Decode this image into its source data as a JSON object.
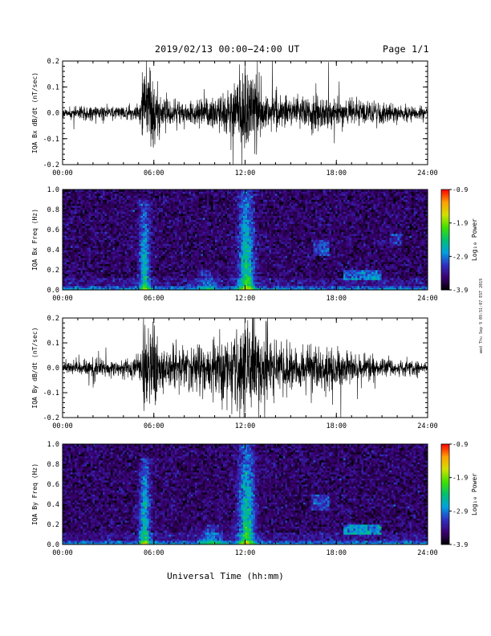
{
  "header": {
    "title": "2019/02/13  00:00−24:00 UT",
    "page": "Page 1/1"
  },
  "footer": {
    "xlabel": "Universal Time (hh:mm)"
  },
  "side_stamp": "wed Thu Sep 9 09:51:07 EST 2019",
  "colorbar": {
    "label": "Log₁₀ Power",
    "ticks": [
      "-0.9",
      "-1.9",
      "-2.9",
      "-3.9"
    ],
    "range": [
      -3.9,
      -0.9
    ],
    "colors": [
      "#000000",
      "#3a0070",
      "#3030c0",
      "#00a0e0",
      "#00c070",
      "#40e000",
      "#d0e000",
      "#ffa000",
      "#ff0000"
    ]
  },
  "chart_data": [
    {
      "type": "line",
      "id": "bx-dbdt",
      "ylabel": "IQA Bx dB/dt (nT/sec)",
      "ylim": [
        -0.2,
        0.2
      ],
      "yticks": [
        "-0.2",
        "-0.1",
        "0.0",
        "0.1",
        "0.2"
      ],
      "xlim": [
        0,
        24
      ],
      "xticks": [
        "00:00",
        "06:00",
        "12:00",
        "18:00",
        "24:00"
      ],
      "line_color": "#000000",
      "envelope": {
        "hours": [
          0,
          1,
          2,
          3,
          4,
          5,
          5.5,
          6,
          6.5,
          7,
          8,
          9,
          10,
          11,
          11.5,
          12,
          12.5,
          13,
          14,
          15,
          16,
          17,
          18,
          19,
          20,
          21,
          22,
          23,
          24
        ],
        "amplitude": [
          0.02,
          0.025,
          0.03,
          0.03,
          0.025,
          0.03,
          0.2,
          0.2,
          0.08,
          0.06,
          0.05,
          0.06,
          0.07,
          0.09,
          0.15,
          0.2,
          0.2,
          0.1,
          0.07,
          0.06,
          0.06,
          0.07,
          0.06,
          0.05,
          0.05,
          0.04,
          0.04,
          0.03,
          0.025
        ]
      }
    },
    {
      "type": "heatmap",
      "id": "bx-spec",
      "ylabel": "IQA Bx Freq (Hz)",
      "ylim": [
        0.0,
        1.0
      ],
      "yticks": [
        "0.0",
        "0.2",
        "0.4",
        "0.6",
        "0.8",
        "1.0"
      ],
      "xlim": [
        0,
        24
      ],
      "xticks": [
        "00:00",
        "06:00",
        "12:00",
        "18:00",
        "24:00"
      ],
      "zlabel": "Log₁₀ Power",
      "zlim": [
        -3.9,
        -0.9
      ],
      "features": [
        {
          "kind": "burst",
          "hour": 5.4,
          "width": 0.35,
          "fmax": 0.9,
          "level": -2.3
        },
        {
          "kind": "burst",
          "hour": 9.5,
          "width": 0.6,
          "fmax": 0.2,
          "level": -2.9
        },
        {
          "kind": "burst",
          "hour": 12.1,
          "width": 0.5,
          "fmax": 1.0,
          "level": -2.0
        },
        {
          "kind": "band",
          "hour_start": 16.5,
          "hour_end": 17.6,
          "fmin": 0.35,
          "fmax": 0.5,
          "level": -3.0
        },
        {
          "kind": "band",
          "hour_start": 18.5,
          "hour_end": 21.0,
          "fmin": 0.1,
          "fmax": 0.2,
          "level": -2.8
        },
        {
          "kind": "band",
          "hour_start": 21.5,
          "hour_end": 22.3,
          "fmin": 0.45,
          "fmax": 0.55,
          "level": -3.1
        }
      ]
    },
    {
      "type": "line",
      "id": "by-dbdt",
      "ylabel": "IQA By dB/dt (nT/sec)",
      "ylim": [
        -0.2,
        0.2
      ],
      "yticks": [
        "-0.2",
        "-0.1",
        "0.0",
        "0.1",
        "0.2"
      ],
      "xlim": [
        0,
        24
      ],
      "xticks": [
        "00:00",
        "06:00",
        "12:00",
        "18:00",
        "24:00"
      ],
      "line_color": "#000000",
      "envelope": {
        "hours": [
          0,
          1,
          2,
          3,
          4,
          5,
          5.5,
          6,
          6.5,
          7,
          8,
          9,
          10,
          11,
          11.5,
          12,
          12.5,
          13,
          14,
          15,
          16,
          17,
          18,
          19,
          20,
          21,
          22,
          23,
          24
        ],
        "amplitude": [
          0.02,
          0.03,
          0.04,
          0.035,
          0.03,
          0.04,
          0.2,
          0.2,
          0.1,
          0.08,
          0.09,
          0.1,
          0.12,
          0.14,
          0.18,
          0.2,
          0.2,
          0.15,
          0.12,
          0.1,
          0.09,
          0.1,
          0.08,
          0.06,
          0.05,
          0.04,
          0.035,
          0.03,
          0.02
        ]
      }
    },
    {
      "type": "heatmap",
      "id": "by-spec",
      "ylabel": "IQA By Freq (Hz)",
      "ylim": [
        0.0,
        1.0
      ],
      "yticks": [
        "0.0",
        "0.2",
        "0.4",
        "0.6",
        "0.8",
        "1.0"
      ],
      "xlim": [
        0,
        24
      ],
      "xticks": [
        "00:00",
        "06:00",
        "12:00",
        "18:00",
        "24:00"
      ],
      "zlabel": "Log₁₀ Power",
      "zlim": [
        -3.9,
        -0.9
      ],
      "features": [
        {
          "kind": "burst",
          "hour": 5.4,
          "width": 0.35,
          "fmax": 0.85,
          "level": -2.2
        },
        {
          "kind": "burst",
          "hour": 9.8,
          "width": 0.7,
          "fmax": 0.2,
          "level": -2.7
        },
        {
          "kind": "burst",
          "hour": 12.1,
          "width": 0.5,
          "fmax": 1.0,
          "level": -2.0
        },
        {
          "kind": "band",
          "hour_start": 16.4,
          "hour_end": 17.5,
          "fmin": 0.35,
          "fmax": 0.5,
          "level": -3.0
        },
        {
          "kind": "band",
          "hour_start": 18.5,
          "hour_end": 21.0,
          "fmin": 0.1,
          "fmax": 0.2,
          "level": -2.6
        }
      ]
    }
  ]
}
